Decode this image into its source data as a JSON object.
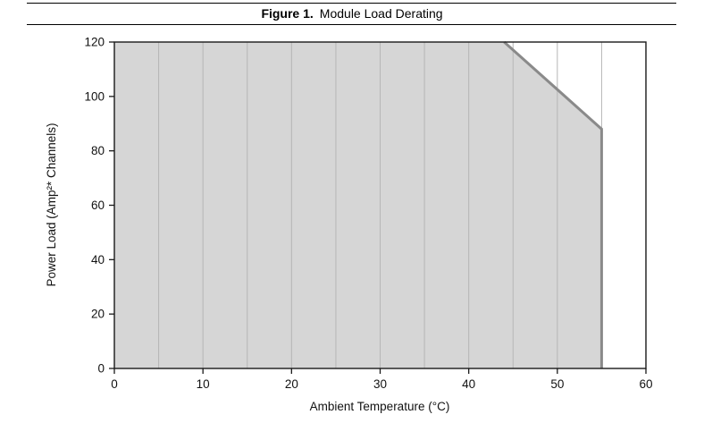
{
  "figure": {
    "label": "Figure 1.",
    "title": "Module Load Derating"
  },
  "chart_data": {
    "type": "area",
    "title": "Module Load Derating",
    "xlabel": "Ambient Temperature (°C)",
    "ylabel": "Power Load (Amp²* Channels)",
    "xlim": [
      0,
      60
    ],
    "ylim": [
      0,
      120
    ],
    "x_ticks": [
      0,
      10,
      20,
      30,
      40,
      50,
      60
    ],
    "y_ticks": [
      0,
      20,
      40,
      60,
      80,
      100,
      120
    ],
    "x_minor_grid_step": 5,
    "grid": "vertical-only",
    "legend": "none",
    "area_points": [
      [
        0,
        120
      ],
      [
        44,
        120
      ],
      [
        55,
        88
      ],
      [
        55,
        0
      ],
      [
        0,
        0
      ]
    ],
    "derating_line": [
      [
        44,
        120
      ],
      [
        55,
        88
      ],
      [
        55,
        0
      ]
    ],
    "colors": {
      "area_fill": "#d6d6d6",
      "derating_line": "#8a8a8a",
      "grid": "#b6b6b6",
      "frame": "#1a1a1a"
    }
  }
}
